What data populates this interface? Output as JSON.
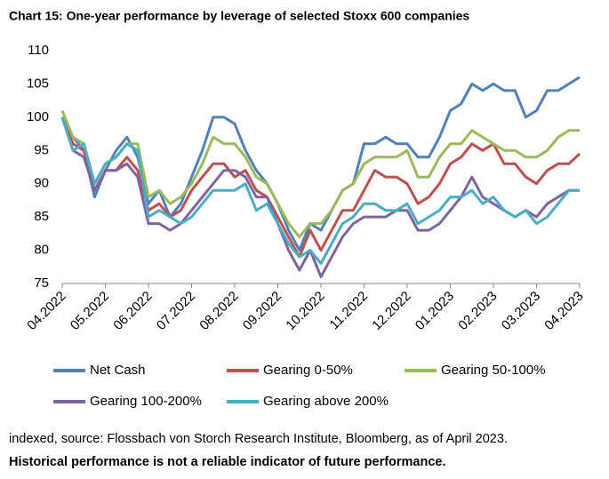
{
  "chart_data": {
    "type": "line",
    "title": "Chart 15: One-year performance by leverage of selected Stoxx 600 companies",
    "categories": [
      "04.2022",
      null,
      null,
      null,
      "05.2022",
      null,
      null,
      null,
      "06.2022",
      null,
      null,
      null,
      "07.2022",
      null,
      null,
      null,
      "08.2022",
      null,
      null,
      null,
      "09.2022",
      null,
      null,
      null,
      "10.2022",
      null,
      null,
      null,
      "11.2022",
      null,
      null,
      null,
      "12.2022",
      null,
      null,
      null,
      "01.2023",
      null,
      null,
      null,
      "02.2023",
      null,
      null,
      null,
      "03.2023",
      null,
      null,
      null,
      "04.2023"
    ],
    "series": [
      {
        "name": "Net Cash",
        "color": "#4f81bd",
        "values": [
          100,
          97,
          95,
          88,
          92,
          95,
          97,
          94,
          87,
          89,
          85,
          87,
          91,
          95,
          100,
          100,
          99,
          95,
          92,
          90,
          87,
          83,
          80,
          84,
          83,
          86,
          89,
          90,
          96,
          96,
          97,
          96,
          96,
          94,
          94,
          97,
          101,
          102,
          105,
          104,
          105,
          104,
          104,
          100,
          101,
          104,
          104,
          105,
          106
        ]
      },
      {
        "name": "Gearing 0-50%",
        "color": "#c0504d",
        "values": [
          100,
          96,
          95,
          89,
          92,
          92,
          94,
          92,
          86,
          87,
          85,
          86,
          89,
          91,
          93,
          93,
          91,
          92,
          89,
          88,
          85,
          82,
          79,
          83,
          80,
          83,
          86,
          86,
          89,
          92,
          91,
          91,
          90,
          87,
          88,
          90,
          93,
          94,
          96,
          95,
          96,
          93,
          93,
          91,
          90,
          92,
          93,
          93,
          94.5
        ]
      },
      {
        "name": "Gearing 50-100%",
        "color": "#9bbb59",
        "values": [
          101,
          97,
          96,
          90,
          93,
          94,
          96,
          96,
          88,
          89,
          87,
          88,
          90,
          93,
          97,
          96,
          96,
          94,
          91,
          90,
          87,
          84,
          82,
          84,
          84,
          86,
          89,
          90,
          93,
          94,
          94,
          94,
          95,
          91,
          91,
          94,
          96,
          96,
          98,
          97,
          96,
          95,
          95,
          94,
          94,
          95,
          97,
          98,
          98
        ]
      },
      {
        "name": "Gearing 100-200%",
        "color": "#8064a2",
        "values": [
          100,
          95,
          94,
          89,
          92,
          92,
          93,
          91,
          84,
          84,
          83,
          84,
          86,
          88,
          90,
          92,
          92,
          91,
          88,
          88,
          84,
          80,
          77,
          80,
          76,
          79,
          82,
          84,
          85,
          85,
          85,
          86,
          86,
          83,
          83,
          84,
          86,
          88,
          91,
          88,
          87,
          86,
          85,
          86,
          85,
          87,
          88,
          89,
          89
        ]
      },
      {
        "name": "Gearing above 200%",
        "color": "#4bacc6",
        "values": [
          100,
          95,
          96,
          90,
          93,
          94,
          96,
          95,
          85,
          86,
          85,
          84,
          85,
          87,
          89,
          89,
          89,
          90,
          86,
          87,
          84,
          81,
          79,
          80,
          78,
          81,
          84,
          85,
          87,
          87,
          86,
          86,
          87,
          84,
          85,
          86,
          88,
          88,
          89,
          87,
          88,
          86,
          85,
          86,
          84,
          85,
          87,
          89,
          89
        ]
      }
    ],
    "ylim": [
      75,
      110
    ],
    "yticks": [
      75,
      80,
      85,
      90,
      95,
      100,
      105,
      110
    ],
    "source": "indexed, source: Flossbach von Storch Research Institute, Bloomberg, as of April 2023.",
    "disclaimer": "Historical performance is not a reliable indicator of future performance."
  }
}
